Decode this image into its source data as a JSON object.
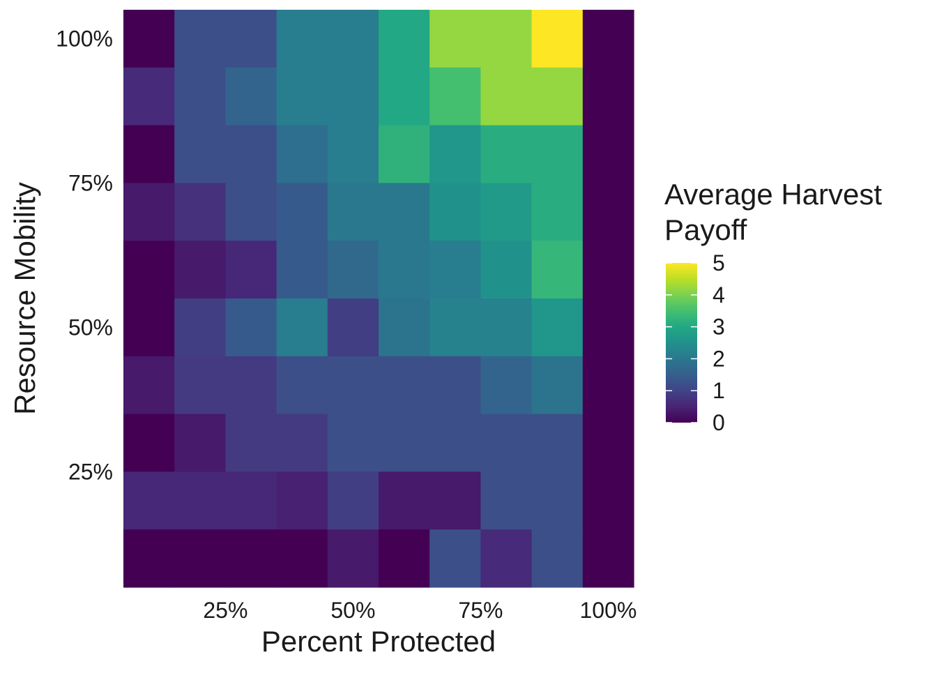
{
  "chart_data": {
    "type": "heatmap",
    "xlabel": "Percent Protected",
    "ylabel": "Resource Mobility",
    "x_ticks": [
      "25%",
      "50%",
      "75%",
      "100%"
    ],
    "y_ticks": [
      "100%",
      "75%",
      "50%",
      "25%"
    ],
    "x_tick_values": [
      0.25,
      0.5,
      0.75,
      1.0
    ],
    "y_tick_values": [
      1.0,
      0.75,
      0.5,
      0.25
    ],
    "x_values": [
      0.1,
      0.2,
      0.3,
      0.4,
      0.5,
      0.6,
      0.7,
      0.8,
      0.9,
      1.0
    ],
    "y_values": [
      1.0,
      0.9,
      0.8,
      0.7,
      0.6,
      0.5,
      0.4,
      0.3,
      0.2,
      0.1
    ],
    "xlim": [
      0.05,
      1.05
    ],
    "ylim": [
      0.05,
      1.05
    ],
    "z": [
      [
        0.0,
        1.2,
        1.2,
        2.1,
        2.1,
        3.0,
        4.2,
        4.2,
        5.0,
        0.0
      ],
      [
        0.6,
        1.2,
        1.6,
        2.1,
        2.1,
        3.0,
        3.5,
        4.2,
        4.2,
        0.0
      ],
      [
        0.0,
        1.2,
        1.2,
        1.8,
        2.1,
        3.2,
        2.6,
        3.1,
        3.1,
        0.0
      ],
      [
        0.35,
        0.7,
        1.2,
        1.4,
        2.0,
        2.0,
        2.5,
        2.7,
        3.1,
        0.0
      ],
      [
        0.0,
        0.35,
        0.55,
        1.4,
        1.7,
        2.0,
        2.1,
        2.5,
        3.3,
        0.0
      ],
      [
        0.0,
        0.9,
        1.4,
        2.1,
        0.9,
        1.9,
        2.2,
        2.2,
        2.6,
        0.0
      ],
      [
        0.35,
        0.85,
        0.85,
        1.2,
        1.2,
        1.2,
        1.2,
        1.6,
        1.9,
        0.0
      ],
      [
        0.0,
        0.35,
        0.85,
        0.85,
        1.2,
        1.2,
        1.2,
        1.2,
        1.2,
        0.0
      ],
      [
        0.55,
        0.55,
        0.55,
        0.45,
        0.9,
        0.35,
        0.35,
        1.2,
        1.2,
        0.0
      ],
      [
        0.0,
        0.0,
        0.0,
        0.0,
        0.35,
        0.0,
        1.2,
        0.6,
        1.2,
        0.0
      ]
    ],
    "legend": {
      "title_lines": [
        "Average Harvest",
        "Payoff"
      ],
      "ticks": [
        "5",
        "4",
        "3",
        "2",
        "1",
        "0"
      ],
      "tick_values": [
        5,
        4,
        3,
        2,
        1,
        0
      ],
      "min": 0,
      "max": 5,
      "colormap": "viridis",
      "placement": "right"
    },
    "grid": false
  }
}
